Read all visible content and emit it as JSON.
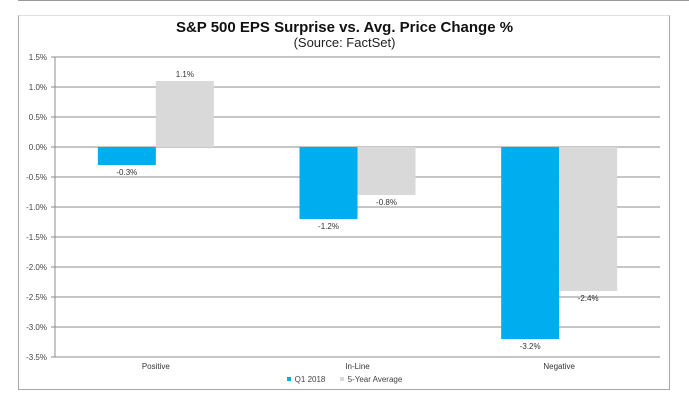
{
  "chart_data": {
    "type": "bar",
    "title": "S&P 500 EPS Surprise vs. Avg. Price Change %",
    "subtitle": "(Source: FactSet)",
    "xlabel": "",
    "ylabel": "",
    "categories": [
      "Positive",
      "In-Line",
      "Negative"
    ],
    "series": [
      {
        "name": "Q1 2018",
        "color": "#00aeef",
        "values": [
          -0.3,
          -1.2,
          -3.2
        ],
        "labels": [
          "-0.3%",
          "-1.2%",
          "-3.2%"
        ]
      },
      {
        "name": "5-Year Average",
        "color": "#d9d9d9",
        "values": [
          1.1,
          -0.8,
          -2.4
        ],
        "labels": [
          "1.1%",
          "-0.8%",
          "-2.4%"
        ]
      }
    ],
    "ylim": [
      -3.5,
      1.5
    ],
    "yticks": [
      1.5,
      1.0,
      0.5,
      0.0,
      -0.5,
      -1.0,
      -1.5,
      -2.0,
      -2.5,
      -3.0,
      -3.5
    ],
    "ytick_labels": [
      "1.5%",
      "1.0%",
      "0.5%",
      "0.0%",
      "-0.5%",
      "-1.0%",
      "-1.5%",
      "-2.0%",
      "-2.5%",
      "-3.0%",
      "-3.5%"
    ],
    "grid": true,
    "legend_position": "bottom"
  }
}
